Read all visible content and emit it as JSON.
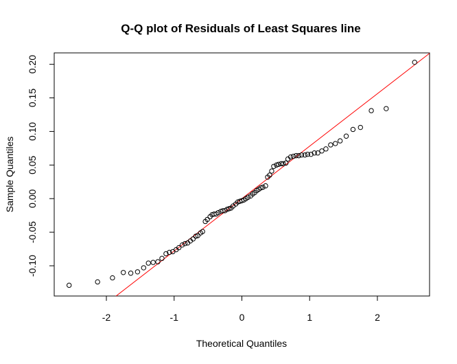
{
  "chart_data": {
    "type": "scatter",
    "title": "Q-Q plot of Residuals of Least Squares line",
    "xlabel": "Theoretical Quantiles",
    "ylabel": "Sample Quantiles",
    "xlim": [
      -2.77,
      2.77
    ],
    "ylim": [
      -0.145,
      0.217
    ],
    "x_ticks": [
      -2,
      -1,
      0,
      1,
      2
    ],
    "x_tick_labels": [
      "-2",
      "-1",
      "0",
      "1",
      "2"
    ],
    "y_ticks": [
      -0.1,
      -0.05,
      0.0,
      0.05,
      0.1,
      0.15,
      0.2
    ],
    "y_tick_labels": [
      "-0.10",
      "-0.05",
      "0.00",
      "0.05",
      "0.10",
      "0.15",
      "0.20"
    ],
    "grid": false,
    "reference_line": {
      "color": "#ff0000",
      "intercept": 0.0,
      "slope": 0.0781
    },
    "point_color": "#000000",
    "points": [
      [
        -2.55,
        -0.129
      ],
      [
        -2.13,
        -0.124
      ],
      [
        -1.91,
        -0.118
      ],
      [
        -1.75,
        -0.11
      ],
      [
        -1.64,
        -0.111
      ],
      [
        -1.54,
        -0.109
      ],
      [
        -1.45,
        -0.103
      ],
      [
        -1.38,
        -0.096
      ],
      [
        -1.31,
        -0.095
      ],
      [
        -1.24,
        -0.094
      ],
      [
        -1.18,
        -0.089
      ],
      [
        -1.12,
        -0.082
      ],
      [
        -1.07,
        -0.08
      ],
      [
        -1.02,
        -0.079
      ],
      [
        -0.97,
        -0.076
      ],
      [
        -0.93,
        -0.073
      ],
      [
        -0.88,
        -0.069
      ],
      [
        -0.84,
        -0.067
      ],
      [
        -0.8,
        -0.066
      ],
      [
        -0.76,
        -0.063
      ],
      [
        -0.72,
        -0.06
      ],
      [
        -0.68,
        -0.056
      ],
      [
        -0.65,
        -0.055
      ],
      [
        -0.61,
        -0.051
      ],
      [
        -0.58,
        -0.049
      ],
      [
        -0.54,
        -0.034
      ],
      [
        -0.51,
        -0.031
      ],
      [
        -0.47,
        -0.027
      ],
      [
        -0.44,
        -0.024
      ],
      [
        -0.41,
        -0.023
      ],
      [
        -0.38,
        -0.023
      ],
      [
        -0.35,
        -0.021
      ],
      [
        -0.31,
        -0.019
      ],
      [
        -0.28,
        -0.018
      ],
      [
        -0.25,
        -0.018
      ],
      [
        -0.22,
        -0.016
      ],
      [
        -0.19,
        -0.015
      ],
      [
        -0.16,
        -0.014
      ],
      [
        -0.13,
        -0.011
      ],
      [
        -0.09,
        -0.008
      ],
      [
        -0.06,
        -0.005
      ],
      [
        -0.03,
        -0.004
      ],
      [
        0.0,
        -0.003
      ],
      [
        0.03,
        -0.002
      ],
      [
        0.06,
        0.0
      ],
      [
        0.09,
        0.002
      ],
      [
        0.13,
        0.004
      ],
      [
        0.16,
        0.007
      ],
      [
        0.19,
        0.009
      ],
      [
        0.22,
        0.012
      ],
      [
        0.25,
        0.014
      ],
      [
        0.28,
        0.016
      ],
      [
        0.31,
        0.017
      ],
      [
        0.35,
        0.019
      ],
      [
        0.38,
        0.032
      ],
      [
        0.41,
        0.035
      ],
      [
        0.44,
        0.041
      ],
      [
        0.47,
        0.048
      ],
      [
        0.51,
        0.05
      ],
      [
        0.54,
        0.051
      ],
      [
        0.58,
        0.052
      ],
      [
        0.61,
        0.052
      ],
      [
        0.65,
        0.053
      ],
      [
        0.68,
        0.059
      ],
      [
        0.72,
        0.062
      ],
      [
        0.76,
        0.063
      ],
      [
        0.8,
        0.064
      ],
      [
        0.84,
        0.064
      ],
      [
        0.88,
        0.065
      ],
      [
        0.93,
        0.065
      ],
      [
        0.97,
        0.066
      ],
      [
        1.02,
        0.066
      ],
      [
        1.07,
        0.068
      ],
      [
        1.12,
        0.068
      ],
      [
        1.18,
        0.071
      ],
      [
        1.24,
        0.074
      ],
      [
        1.31,
        0.08
      ],
      [
        1.38,
        0.082
      ],
      [
        1.45,
        0.086
      ],
      [
        1.54,
        0.093
      ],
      [
        1.64,
        0.103
      ],
      [
        1.75,
        0.106
      ],
      [
        1.91,
        0.131
      ],
      [
        2.13,
        0.134
      ],
      [
        2.55,
        0.203
      ]
    ]
  }
}
